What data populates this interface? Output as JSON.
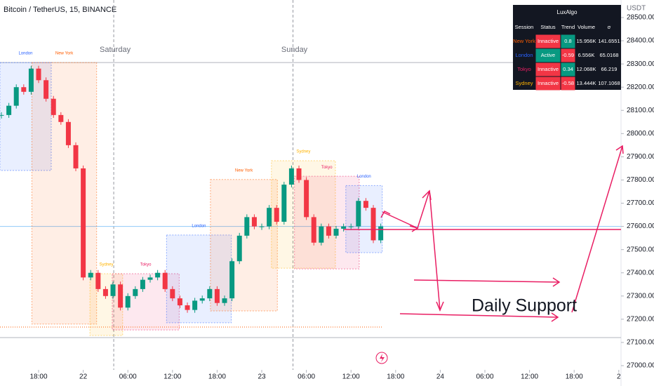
{
  "chart_data": {
    "type": "candlestick",
    "title": "Bitcoin / TetherUS, 15, BINANCE",
    "currency_label": "USDT",
    "annotation": "Daily Support",
    "up_color": "#089981",
    "down_color": "#f23645",
    "x": [
      -5,
      -4,
      -3,
      -2,
      -1,
      0,
      1,
      2,
      3,
      4,
      5,
      6,
      7,
      8,
      9,
      10,
      11,
      12,
      13,
      14,
      15,
      16,
      17,
      18,
      19,
      20,
      21,
      22,
      23,
      24,
      25,
      26,
      27,
      28,
      29,
      30,
      31,
      32,
      33,
      34,
      35,
      36,
      37,
      38,
      39,
      40,
      41,
      42,
      43,
      44,
      45,
      46
    ],
    "values": [
      28080,
      28120,
      28200,
      28180,
      28280,
      28230,
      28150,
      28080,
      28050,
      27950,
      27850,
      27380,
      27400,
      27330,
      27300,
      27350,
      27250,
      27300,
      27330,
      27370,
      27380,
      27400,
      27330,
      27290,
      27260,
      27240,
      27280,
      27290,
      27330,
      27270,
      27290,
      27450,
      27560,
      27640,
      27600,
      27600,
      27680,
      27620,
      27780,
      27850,
      27800,
      27640,
      27530,
      27600,
      27560,
      27590,
      27600,
      27600,
      27710,
      27680,
      27540,
      27600
    ],
    "xlim": [
      -5.19,
      78.3
    ],
    "xticks": [
      {
        "value": 0,
        "label": "18:00"
      },
      {
        "value": 6,
        "label": "22"
      },
      {
        "value": 12,
        "label": "06:00"
      },
      {
        "value": 18,
        "label": "12:00"
      },
      {
        "value": 24,
        "label": "18:00"
      },
      {
        "value": 30,
        "label": "23"
      },
      {
        "value": 36,
        "label": "06:00"
      },
      {
        "value": 42,
        "label": "12:00"
      },
      {
        "value": 48,
        "label": "18:00"
      },
      {
        "value": 54,
        "label": "24"
      },
      {
        "value": 60,
        "label": "06:00"
      },
      {
        "value": 66,
        "label": "12:00"
      },
      {
        "value": 72,
        "label": "18:00"
      },
      {
        "value": 78,
        "label": "2"
      }
    ],
    "day_markers": [
      {
        "value": 10.1,
        "label": "Saturday"
      },
      {
        "value": 34.2,
        "label": "Sunday"
      }
    ],
    "ylim": [
      26912.3,
      28575.6
    ],
    "yticks": [
      {
        "value": 27000,
        "label": "27000.00"
      },
      {
        "value": 27100,
        "label": "27100.00"
      },
      {
        "value": 27200,
        "label": "27200.00"
      },
      {
        "value": 27300,
        "label": "27300.00"
      },
      {
        "value": 27400,
        "label": "27400.00"
      },
      {
        "value": 27500,
        "label": "27500.00"
      },
      {
        "value": 27600,
        "label": "27600.00"
      },
      {
        "value": 27700,
        "label": "27700.00"
      },
      {
        "value": 27800,
        "label": "27800.00"
      },
      {
        "value": 27900,
        "label": "27900.00"
      },
      {
        "value": 28000,
        "label": "28000.00"
      },
      {
        "value": 28100,
        "label": "28100.00"
      },
      {
        "value": 28200,
        "label": "28200.00"
      },
      {
        "value": 28300,
        "label": "28300.00"
      },
      {
        "value": 28400,
        "label": "28400.00"
      },
      {
        "value": 28500,
        "label": "28500.00"
      }
    ],
    "levels": [
      {
        "value": 28306,
        "color": "#b2b5be"
      },
      {
        "value": 27600,
        "color": "#90caf9"
      },
      {
        "value": 27121,
        "color": "#b2b5be"
      }
    ],
    "sessions": [
      {
        "name": "London",
        "color": "#2962ff",
        "start": -5.2,
        "end": 1.7,
        "high": 28306,
        "low": 27841
      },
      {
        "name": "New York",
        "color": "#ff5d00",
        "start": -0.9,
        "end": 7.8,
        "high": 28306,
        "low": 27179
      },
      {
        "name": "Sydney",
        "color": "#ffb300",
        "start": 6.9,
        "end": 11.3,
        "high": 27396,
        "low": 27130
      },
      {
        "name": "Tokyo",
        "color": "#e91e63",
        "start": 9.9,
        "end": 18.9,
        "high": 27396,
        "low": 27154
      },
      {
        "name": "London",
        "color": "#2962ff",
        "start": 17.2,
        "end": 25.9,
        "high": 27563,
        "low": 27185
      },
      {
        "name": "New York",
        "color": "#ff5d00",
        "start": 23.1,
        "end": 32.1,
        "high": 27802,
        "low": 27236
      },
      {
        "name": "Sydney",
        "color": "#ffb300",
        "start": 31.3,
        "end": 39.9,
        "high": 27883,
        "low": 27420
      },
      {
        "name": "Tokyo",
        "color": "#e91e63",
        "start": 34.4,
        "end": 43.1,
        "high": 27816,
        "low": 27417
      },
      {
        "name": "London",
        "color": "#2962ff",
        "start": 41.3,
        "end": 46.2,
        "high": 27776,
        "low": 27487
      }
    ]
  },
  "table": {
    "title": "LuxAlgo",
    "header": [
      "Session",
      "Status",
      "Trend",
      "Volume",
      "σ"
    ],
    "rows": [
      {
        "color": "#ff5d00",
        "cells": [
          "New York",
          "Innactive",
          "0.8",
          "15.956K",
          "141.6551"
        ]
      },
      {
        "color": "#2962ff",
        "cells": [
          "London",
          "Active",
          "-0.59",
          "6.556K",
          "65.0168"
        ]
      },
      {
        "color": "#e91e63",
        "cells": [
          "Tokyo",
          "Innactive",
          "0.34",
          "12.068K",
          "66.219"
        ]
      },
      {
        "color": "#ffb300",
        "cells": [
          "Sydney",
          "Innactive",
          "-0.58",
          "13.444K",
          "107.1068"
        ]
      }
    ]
  }
}
